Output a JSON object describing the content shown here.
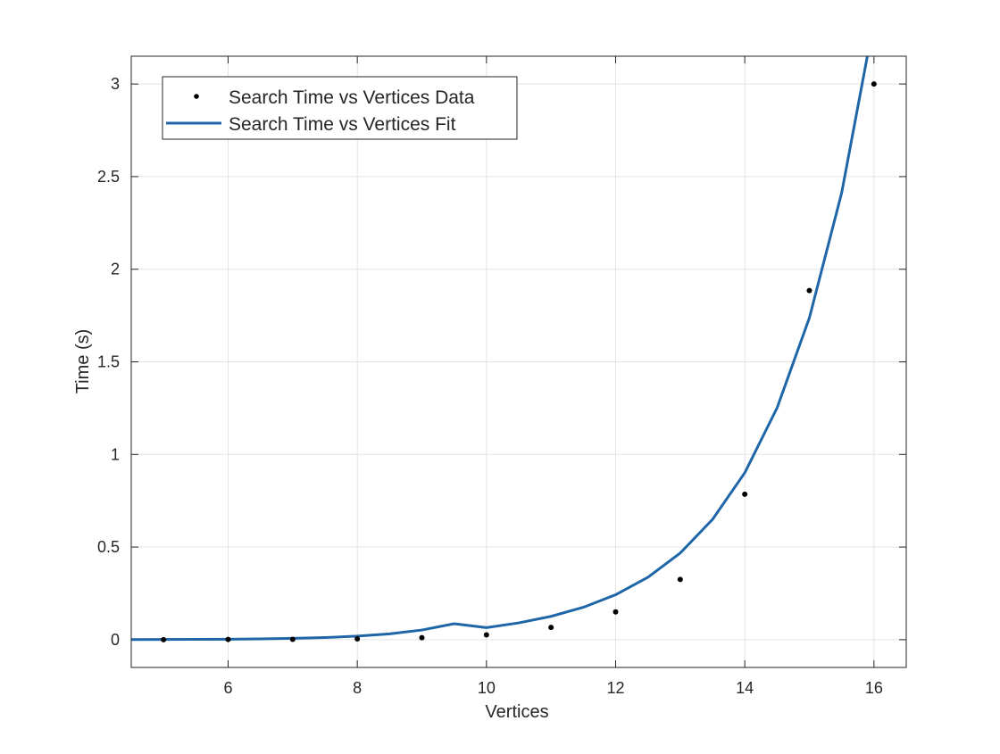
{
  "chart_data": {
    "type": "scatter",
    "xlabel": "Vertices",
    "ylabel": "Time (s)",
    "xlim": [
      4.5,
      16.5
    ],
    "ylim": [
      -0.15,
      3.15
    ],
    "x_ticks": [
      6,
      8,
      10,
      12,
      14,
      16
    ],
    "y_ticks": [
      0,
      0.5,
      1,
      1.5,
      2,
      2.5,
      3
    ],
    "grid": true,
    "legend_position": "top-left",
    "series": [
      {
        "name": "Search Time vs Vertices Data",
        "kind": "markers",
        "color": "#000000",
        "x": [
          5,
          6,
          7,
          8,
          9,
          10,
          11,
          12,
          13,
          14,
          15,
          16
        ],
        "y": [
          0.0,
          0.001,
          0.002,
          0.004,
          0.011,
          0.026,
          0.066,
          0.15,
          0.325,
          0.785,
          1.885,
          3.0
        ]
      },
      {
        "name": "Search Time vs Vertices Fit",
        "kind": "line",
        "color": "#1f66a8",
        "x": [
          4.5,
          5,
          5.5,
          6,
          6.5,
          7,
          7.5,
          8,
          8.5,
          9,
          9.5,
          10,
          10.5,
          11,
          11.5,
          12,
          12.5,
          13,
          13.5,
          14,
          14.5,
          15,
          15.5,
          16,
          16.05
        ],
        "y": [
          0.0005,
          0.0009,
          0.0015,
          0.0025,
          0.0042,
          0.0069,
          0.0115,
          0.019,
          0.0314,
          0.052,
          0.086,
          0.0652,
          0.0906,
          0.1258,
          0.1747,
          0.2425,
          0.3367,
          0.4675,
          0.6491,
          0.9012,
          1.2513,
          1.7374,
          2.4123,
          3.34,
          3.45
        ]
      }
    ]
  }
}
